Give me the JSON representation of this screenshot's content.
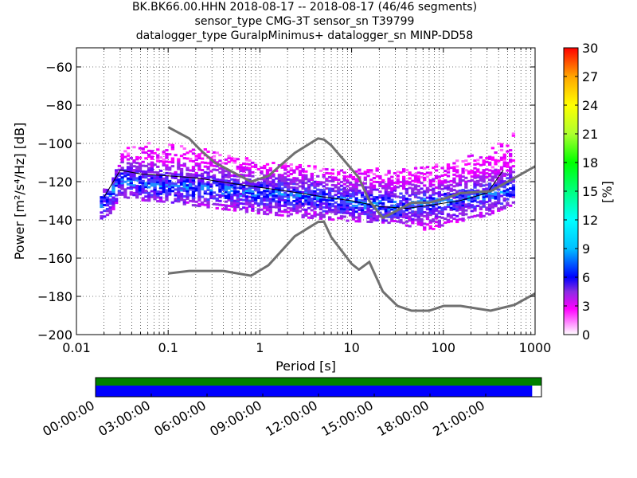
{
  "header": {
    "title_line1": "BK.BK66.00.HHN   2018-08-17 -- 2018-08-17  (46/46 segments)",
    "title_line2": "sensor_type CMG-3T sensor_sn T39799",
    "title_line3": "datalogger_type GuralpMinimus+ datalogger_sn MINP-DD58"
  },
  "chart_data": [
    {
      "type": "heatmap",
      "xlabel": "Period [s]",
      "ylabel": "Power [m²/s⁴/Hz] [dB]",
      "x_scale": "log",
      "xlim": [
        0.01,
        1000
      ],
      "ylim": [
        -200,
        -50
      ],
      "x_ticks": [
        0.01,
        0.1,
        1,
        10,
        100,
        1000
      ],
      "x_tick_labels": [
        "0.01",
        "0.1",
        "1",
        "10",
        "100",
        "1000"
      ],
      "y_ticks": [
        -200,
        -180,
        -160,
        -140,
        -120,
        -100,
        -80,
        -60
      ],
      "y_tick_labels": [
        "−200",
        "−180",
        "−160",
        "−140",
        "−120",
        "−100",
        "−80",
        "−60"
      ],
      "grid": true,
      "colorbar": {
        "label": "[%]",
        "range": [
          0,
          30
        ],
        "ticks": [
          "0",
          "3",
          "6",
          "9",
          "12",
          "15",
          "18",
          "21",
          "24",
          "27",
          "30"
        ],
        "colormap": [
          "#ffffff",
          "#ff00ff",
          "#8a2be2",
          "#0000ff",
          "#00bfff",
          "#00ffff",
          "#00ff7f",
          "#00ff00",
          "#adff2f",
          "#ffff00",
          "#ffa500",
          "#ff0000"
        ]
      },
      "series": [
        {
          "name": "",
          "kind": "density",
          "period_range": [
            0.018,
            600
          ],
          "upper_envelope": [
            [
              0.018,
              -128
            ],
            [
              0.025,
              -118
            ],
            [
              0.03,
              -105
            ],
            [
              0.05,
              -99
            ],
            [
              0.1,
              -101
            ],
            [
              0.3,
              -104
            ],
            [
              1,
              -109
            ],
            [
              3,
              -112
            ],
            [
              10,
              -114
            ],
            [
              30,
              -113
            ],
            [
              100,
              -111
            ],
            [
              300,
              -104
            ],
            [
              600,
              -91
            ]
          ],
          "lower_envelope": [
            [
              0.018,
              -140
            ],
            [
              0.025,
              -136
            ],
            [
              0.03,
              -128
            ],
            [
              0.05,
              -130
            ],
            [
              0.1,
              -131
            ],
            [
              0.3,
              -134
            ],
            [
              1,
              -137
            ],
            [
              3,
              -139
            ],
            [
              10,
              -141
            ],
            [
              30,
              -142
            ],
            [
              70,
              -146
            ],
            [
              100,
              -143
            ],
            [
              300,
              -138
            ],
            [
              600,
              -132
            ]
          ],
          "dense_center": [
            [
              0.02,
              -133
            ],
            [
              0.03,
              -119
            ],
            [
              0.05,
              -121
            ],
            [
              0.1,
              -123
            ],
            [
              0.3,
              -124
            ],
            [
              1,
              -126
            ],
            [
              3,
              -128
            ],
            [
              10,
              -131
            ],
            [
              30,
              -133
            ],
            [
              100,
              -131
            ],
            [
              300,
              -127
            ],
            [
              600,
              -124
            ]
          ]
        },
        {
          "name": "",
          "kind": "mean",
          "x": [
            0.02,
            0.03,
            0.05,
            0.1,
            0.2,
            0.5,
            1,
            2,
            5,
            10,
            20,
            40,
            80,
            150,
            300,
            450
          ],
          "y": [
            -128,
            -114,
            -116,
            -117,
            -118,
            -121,
            -123,
            -125,
            -128,
            -130,
            -133,
            -134,
            -132,
            -130,
            -126,
            -114
          ]
        },
        {
          "name": "",
          "kind": "noise_model_high",
          "x": [
            0.1,
            0.17,
            0.22,
            0.32,
            0.8,
            1.24,
            2.4,
            4.3,
            5,
            6,
            10,
            12,
            15.6,
            21.9,
            31.6,
            45,
            70,
            101,
            154,
            328,
            600,
            1000
          ],
          "y": [
            -91.5,
            -97.4,
            -103,
            -110,
            -120,
            -117,
            -105,
            -97.4,
            -98,
            -101,
            -113.5,
            -118,
            -130,
            -139,
            -135,
            -131,
            -131,
            -129,
            -126,
            -125,
            -118,
            -112
          ]
        },
        {
          "name": "",
          "kind": "noise_model_low",
          "x": [
            0.1,
            0.17,
            0.4,
            0.8,
            1.24,
            2.4,
            4.3,
            5,
            6,
            10,
            12,
            15.6,
            21.9,
            31.6,
            45,
            70,
            101,
            154,
            328,
            600,
            1000
          ],
          "y": [
            -168,
            -166.7,
            -166.7,
            -169.2,
            -163.7,
            -148.6,
            -141.1,
            -141,
            -149,
            -163,
            -166,
            -162,
            -177.5,
            -185,
            -187.5,
            -187.5,
            -185,
            -185,
            -187.5,
            -184.4,
            -178.5
          ]
        }
      ]
    },
    {
      "type": "bar",
      "orientation": "horizontal",
      "x_scale": "time",
      "x_ticks": [
        "00:00:00",
        "03:00:00",
        "06:00:00",
        "09:00:00",
        "12:00:00",
        "15:00:00",
        "18:00:00",
        "21:00:00"
      ],
      "series": [
        {
          "name": "",
          "color": "#008000",
          "start": "00:00:00",
          "end": "24:00:00"
        },
        {
          "name": "",
          "color": "#0000ff",
          "start": "00:00:00",
          "end": "23:30:00"
        }
      ]
    }
  ]
}
